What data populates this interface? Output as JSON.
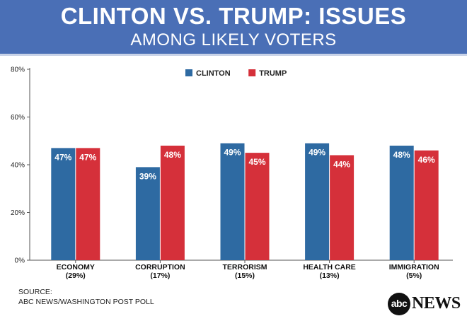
{
  "header": {
    "title": "CLINTON VS. TRUMP: ISSUES",
    "subtitle": "AMONG LIKELY VOTERS"
  },
  "chart_data": {
    "type": "bar",
    "categories": [
      "ECONOMY",
      "CORRUPTION",
      "TERRORISM",
      "HEALTH CARE",
      "IMMIGRATION"
    ],
    "category_shares": [
      "(29%)",
      "(17%)",
      "(15%)",
      "(13%)",
      "(5%)"
    ],
    "series": [
      {
        "name": "CLINTON",
        "color": "#2e6aa2",
        "values": [
          47,
          39,
          49,
          49,
          48
        ],
        "labels": [
          "47%",
          "39%",
          "49%",
          "49%",
          "48%"
        ]
      },
      {
        "name": "TRUMP",
        "color": "#d5303a",
        "values": [
          47,
          48,
          45,
          44,
          46
        ],
        "labels": [
          "47%",
          "48%",
          "45%",
          "44%",
          "46%"
        ]
      }
    ],
    "ylim": [
      0,
      80
    ],
    "yticks": [
      0,
      20,
      40,
      60,
      80
    ],
    "ytick_labels": [
      "0%",
      "20%",
      "40%",
      "60%",
      "80%"
    ],
    "grid": false,
    "legend_position": "top-center"
  },
  "footer": {
    "source_label": "SOURCE:",
    "source_text": "ABC NEWS/WASHINGTON POST POLL",
    "logo_mark": "abc",
    "logo_word": "NEWS"
  }
}
